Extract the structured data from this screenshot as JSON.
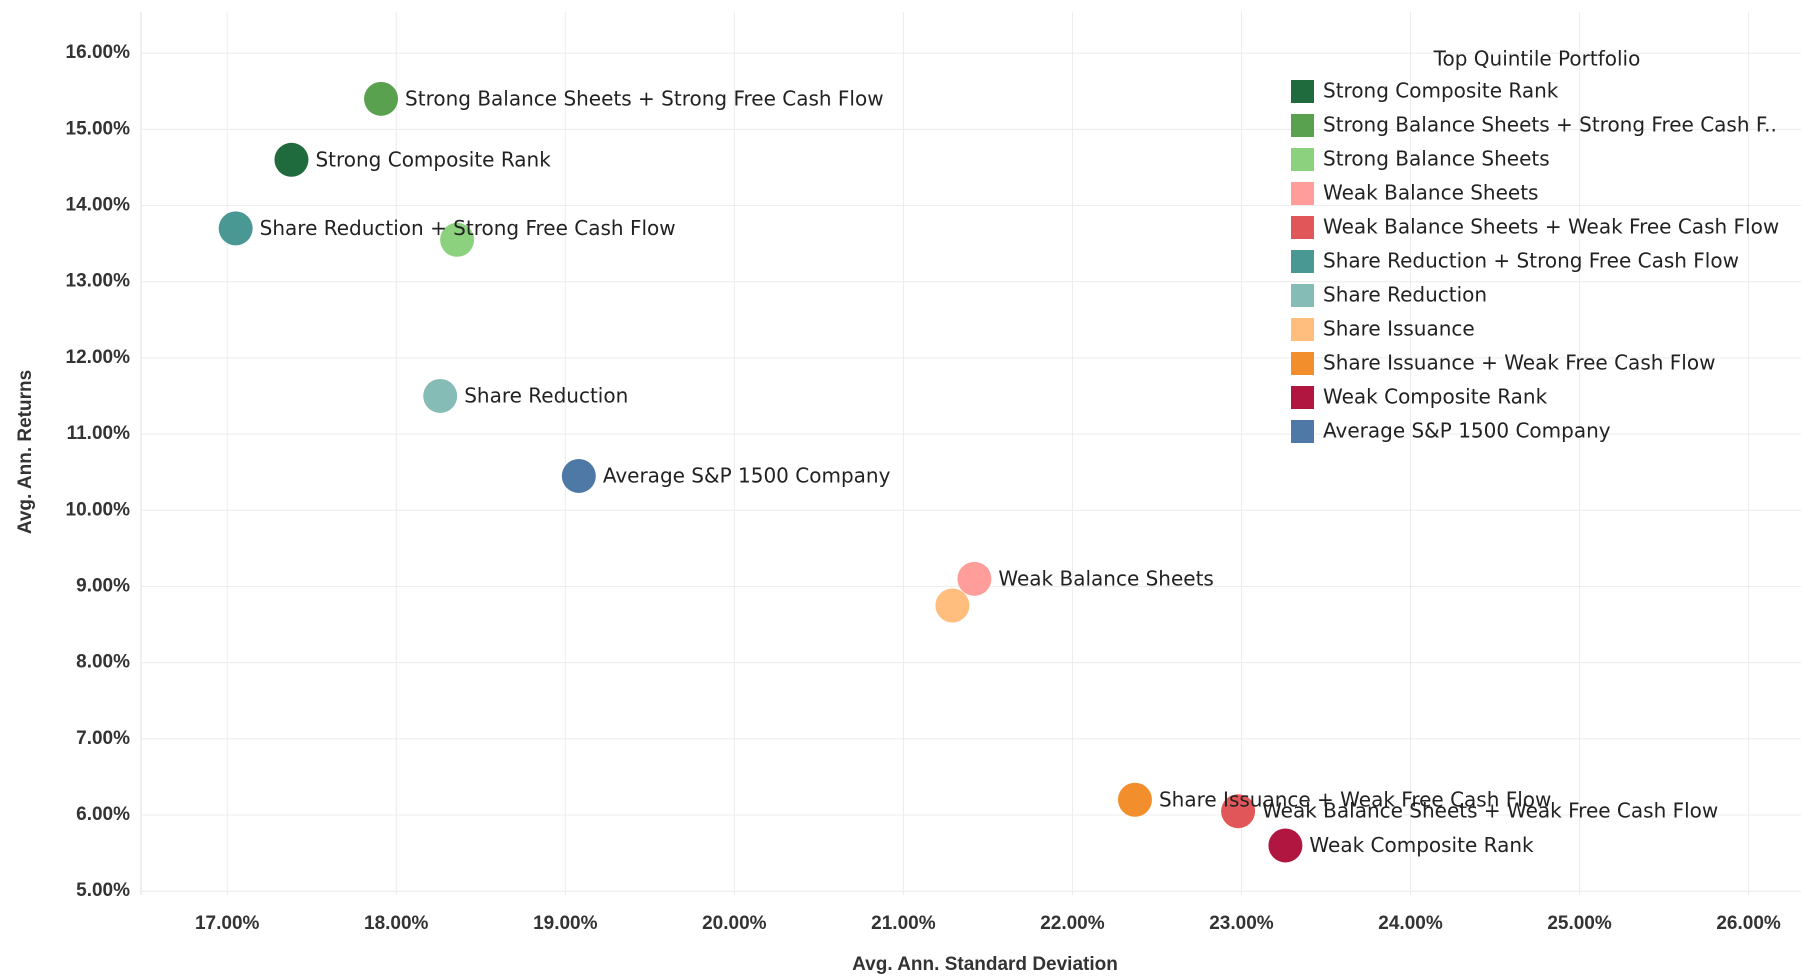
{
  "chart_data": {
    "type": "scatter",
    "x_label": "Avg. Ann. Standard Deviation",
    "y_label": "Avg. Ann. Returns",
    "legend_title": "Top Quintile Portfolio",
    "legend_position": "upper right",
    "grid": true,
    "xlim": [
      16.49,
      26.31
    ],
    "ylim": [
      4.95,
      16.54
    ],
    "xticks": [
      {
        "value": 17,
        "label": "17.00%"
      },
      {
        "value": 18,
        "label": "18.00%"
      },
      {
        "value": 19,
        "label": "19.00%"
      },
      {
        "value": 20,
        "label": "20.00%"
      },
      {
        "value": 21,
        "label": "21.00%"
      },
      {
        "value": 22,
        "label": "22.00%"
      },
      {
        "value": 23,
        "label": "23.00%"
      },
      {
        "value": 24,
        "label": "24.00%"
      },
      {
        "value": 25,
        "label": "25.00%"
      },
      {
        "value": 26,
        "label": "26.00%"
      }
    ],
    "yticks": [
      {
        "value": 5,
        "label": "5.00%"
      },
      {
        "value": 6,
        "label": "6.00%"
      },
      {
        "value": 7,
        "label": "7.00%"
      },
      {
        "value": 8,
        "label": "8.00%"
      },
      {
        "value": 9,
        "label": "9.00%"
      },
      {
        "value": 10,
        "label": "10.00%"
      },
      {
        "value": 11,
        "label": "11.00%"
      },
      {
        "value": 12,
        "label": "12.00%"
      },
      {
        "value": 13,
        "label": "13.00%"
      },
      {
        "value": 14,
        "label": "14.00%"
      },
      {
        "value": 15,
        "label": "15.00%"
      },
      {
        "value": 16,
        "label": "16.00%"
      }
    ],
    "series": [
      {
        "name": "Strong Composite Rank",
        "color": "#1f6b3e",
        "x": 17.38,
        "y": 14.6,
        "show_label": true
      },
      {
        "name": "Strong Balance Sheets + Strong Free Cash Flow",
        "legend_label": "Strong Balance Sheets + Strong Free Cash F..",
        "color": "#59a14f",
        "x": 17.91,
        "y": 15.4,
        "show_label": true
      },
      {
        "name": "Strong Balance Sheets",
        "color": "#8cd17d",
        "x": 18.36,
        "y": 13.55,
        "show_label": false
      },
      {
        "name": "Weak Balance Sheets",
        "color": "#ff9d9a",
        "x": 21.42,
        "y": 9.1,
        "show_label": true
      },
      {
        "name": "Weak Balance Sheets + Weak Free Cash Flow",
        "color": "#e15759",
        "x": 22.98,
        "y": 6.05,
        "show_label": true
      },
      {
        "name": "Share Reduction + Strong Free Cash Flow",
        "color": "#499894",
        "x": 17.05,
        "y": 13.7,
        "show_label": true
      },
      {
        "name": "Share Reduction",
        "color": "#86bcb6",
        "x": 18.26,
        "y": 11.5,
        "show_label": true
      },
      {
        "name": "Share Issuance",
        "color": "#ffbe7d",
        "x": 21.29,
        "y": 8.75,
        "show_label": false
      },
      {
        "name": "Share Issuance + Weak Free Cash Flow",
        "color": "#f28e2b",
        "x": 22.37,
        "y": 6.2,
        "show_label": true
      },
      {
        "name": "Weak Composite Rank",
        "color": "#b0163f",
        "x": 23.26,
        "y": 5.6,
        "show_label": true
      },
      {
        "name": "Average S&P 1500 Company",
        "color": "#4e79a7",
        "x": 19.08,
        "y": 10.45,
        "show_label": true
      }
    ]
  }
}
